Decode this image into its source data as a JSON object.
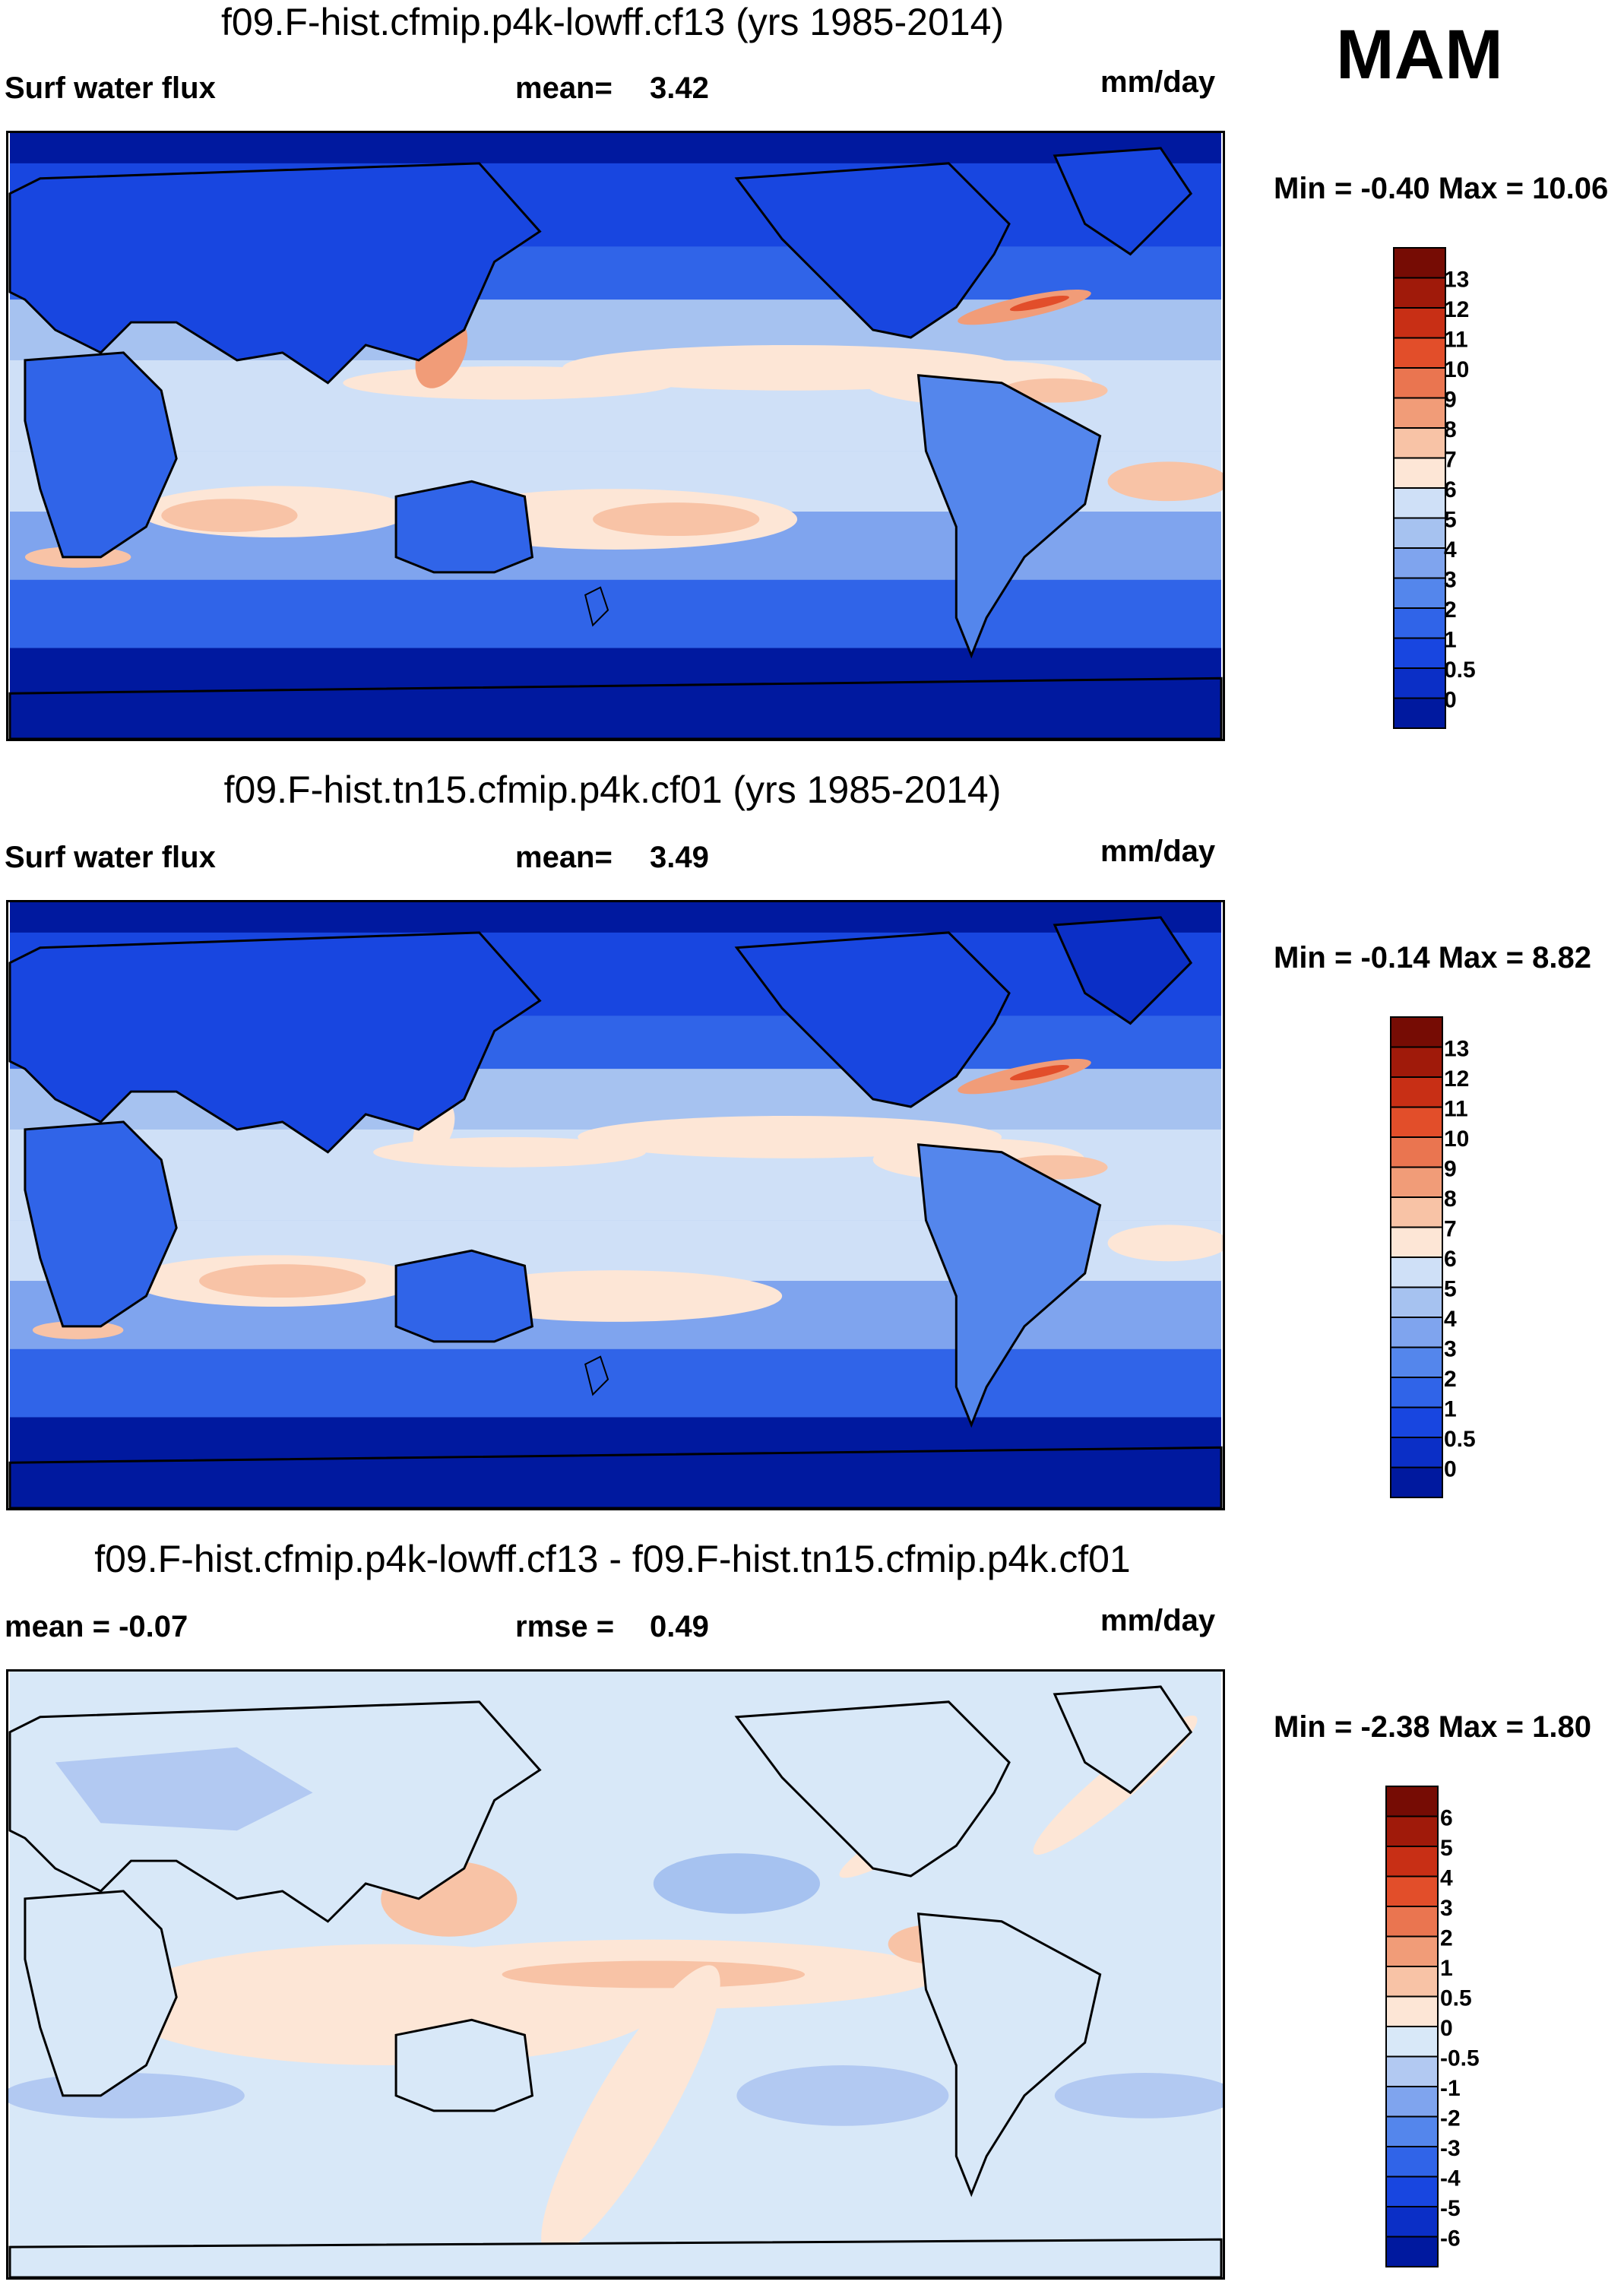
{
  "season": "MAM",
  "colors": {
    "full": [
      "#00199f",
      "#0b2fc6",
      "#1846e0",
      "#3064e8",
      "#5486ec",
      "#7fa4ee",
      "#a6c2f0",
      "#cfe0f7",
      "#fde6d6",
      "#f8c3a6",
      "#f19c78",
      "#ea7550",
      "#e24e2a",
      "#c82f15",
      "#a01a0a",
      "#760c04"
    ],
    "diff": [
      "#00199f",
      "#0b2fc6",
      "#1846e0",
      "#3064e8",
      "#5486ec",
      "#7fa4ee",
      "#b2c9f2",
      "#d8e8f8",
      "#fde6d6",
      "#f8c3a6",
      "#f19c78",
      "#ea7550",
      "#e24e2a",
      "#c82f15",
      "#a01a0a",
      "#760c04"
    ]
  },
  "panels": [
    {
      "title": "f09.F-hist.cfmip.p4k-lowff.cf13 (yrs 1985-2014)",
      "left_label": "Surf water flux",
      "center_label": "mean=",
      "center_value": "3.42",
      "units": "mm/day",
      "min_max_label": "Min =  -0.40 Max =  10.06",
      "colorbar_levels": [
        "13",
        "12",
        "11",
        "10",
        "9",
        "8",
        "7",
        "6",
        "5",
        "4",
        "3",
        "2",
        "1",
        "0.5",
        "0"
      ]
    },
    {
      "title": "f09.F-hist.tn15.cfmip.p4k.cf01 (yrs 1985-2014)",
      "left_label": "Surf water flux",
      "center_label": "mean=",
      "center_value": "3.49",
      "units": "mm/day",
      "min_max_label": "Min =  -0.14 Max =   8.82",
      "colorbar_levels": [
        "13",
        "12",
        "11",
        "10",
        "9",
        "8",
        "7",
        "6",
        "5",
        "4",
        "3",
        "2",
        "1",
        "0.5",
        "0"
      ]
    },
    {
      "title": "f09.F-hist.cfmip.p4k-lowff.cf13 - f09.F-hist.tn15.cfmip.p4k.cf01",
      "left_label": "mean =  -0.07",
      "center_label": "rmse =",
      "center_value": "0.49",
      "units": "mm/day",
      "min_max_label": "Min =  -2.38 Max =   1.80",
      "colorbar_levels": [
        "6",
        "5",
        "4",
        "3",
        "2",
        "1",
        "0.5",
        "0",
        "-0.5",
        "-1",
        "-2",
        "-3",
        "-4",
        "-5",
        "-6"
      ]
    }
  ]
}
